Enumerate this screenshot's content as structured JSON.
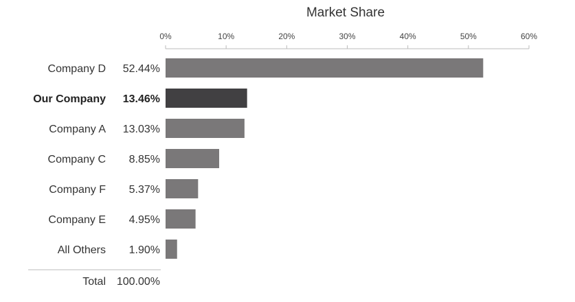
{
  "chart_data": {
    "type": "bar",
    "orientation": "horizontal",
    "title": "Market Share",
    "categories": [
      "Company D",
      "Our Company",
      "Company A",
      "Company C",
      "Company F",
      "Company E",
      "All Others"
    ],
    "values": [
      52.44,
      13.46,
      13.03,
      8.85,
      5.37,
      4.95,
      1.9
    ],
    "value_labels": [
      "52.44%",
      "13.46%",
      "13.03%",
      "8.85%",
      "5.37%",
      "4.95%",
      "1.90%"
    ],
    "highlight": "Our Company",
    "xlim": [
      0,
      60
    ],
    "x_ticks": [
      0,
      10,
      20,
      30,
      40,
      50,
      60
    ],
    "x_tick_labels": [
      "0%",
      "10%",
      "20%",
      "30%",
      "40%",
      "50%",
      "60%"
    ],
    "axis_position": "top",
    "grid": false,
    "total": {
      "label": "Total",
      "value": "100.00%"
    },
    "colors": {
      "bar": "#7a7879",
      "highlight_bar": "#414042",
      "axis": "#bbbbbb",
      "divider": "#bbbbbb"
    }
  }
}
